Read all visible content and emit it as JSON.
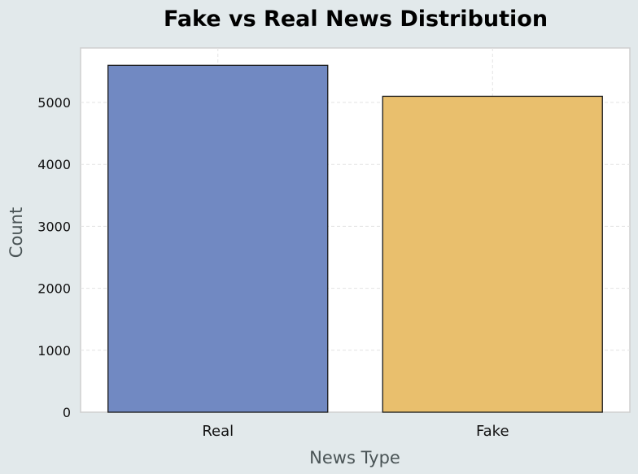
{
  "chart_data": {
    "type": "bar",
    "title": "Fake vs Real News Distribution",
    "xlabel": "News Type",
    "ylabel": "Count",
    "categories": [
      "Real",
      "Fake"
    ],
    "values": [
      5600,
      5100
    ],
    "colors": [
      "#7189c2",
      "#e9bf6d"
    ],
    "bar_edge_color": "#1a1a1a",
    "yticks": [
      "0",
      "1000",
      "2000",
      "3000",
      "4000",
      "5000"
    ],
    "ylim": [
      0,
      5880
    ],
    "grid": true,
    "legend": "none"
  },
  "colors": {
    "figure_background": "#e2e9eb",
    "plot_background": "#ffffff",
    "grid": "#e3e3e3"
  }
}
